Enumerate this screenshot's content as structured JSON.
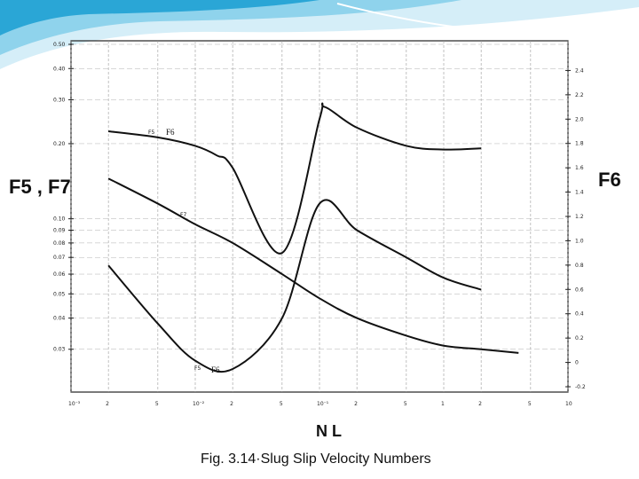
{
  "slide": {
    "caption": "Fig. 3.14·Slug  Slip  Velocity Numbers",
    "accent_colors": [
      "#8fd3ec",
      "#2aa6d6",
      "#d5eef8"
    ]
  },
  "chart_data": {
    "type": "line",
    "title": "",
    "xlabel": "N L",
    "ylabel_left": "F5 , F7",
    "ylabel_right": "F6",
    "x_scale": "log",
    "x_ticks": [
      "10⁻³",
      "2",
      "5",
      "10⁻²",
      "2",
      "5",
      "10⁻¹",
      "2",
      "5",
      "1",
      "2",
      "5",
      "10"
    ],
    "x_range": [
      0.001,
      10
    ],
    "y_left_scale": "log",
    "y_left_ticks": [
      "0.50",
      "0.40",
      "0.30",
      "0.20",
      "0.10",
      "0.09",
      "0.08",
      "0.07",
      "0.06",
      "0.05",
      "0.04",
      "0.03"
    ],
    "y_right_ticks": [
      "2.4",
      "2.2",
      "2.0",
      "1.8",
      "1.6",
      "1.4",
      "1.2",
      "1.0",
      "0.8",
      "0.6",
      "0.4",
      "0.2",
      "0",
      "-0.2"
    ],
    "y_right_range": [
      -0.2,
      2.6
    ],
    "grid": true,
    "legend": "none",
    "series": [
      {
        "name": "F5",
        "axis": "left",
        "x": [
          0.002,
          0.005,
          0.01,
          0.02,
          0.05,
          0.1,
          0.2,
          0.5,
          1,
          2
        ],
        "y": [
          0.065,
          0.038,
          0.027,
          0.025,
          0.04,
          0.115,
          0.09,
          0.07,
          0.058,
          0.052
        ]
      },
      {
        "name": "F6",
        "axis": "right",
        "x": [
          0.002,
          0.005,
          0.01,
          0.015,
          0.02,
          0.05,
          0.1,
          0.11,
          0.2,
          0.5,
          1,
          2
        ],
        "y": [
          1.9,
          1.85,
          1.78,
          1.7,
          1.6,
          0.9,
          2.0,
          2.1,
          1.93,
          1.78,
          1.75,
          1.76
        ]
      },
      {
        "name": "F7",
        "axis": "left",
        "x": [
          0.002,
          0.005,
          0.01,
          0.02,
          0.05,
          0.1,
          0.2,
          0.5,
          1,
          2,
          4
        ],
        "y": [
          0.145,
          0.115,
          0.095,
          0.08,
          0.06,
          0.048,
          0.04,
          0.034,
          0.031,
          0.03,
          0.029
        ]
      }
    ],
    "annotations": [
      "F5",
      "F6",
      "F5",
      "F6",
      "F7"
    ]
  }
}
